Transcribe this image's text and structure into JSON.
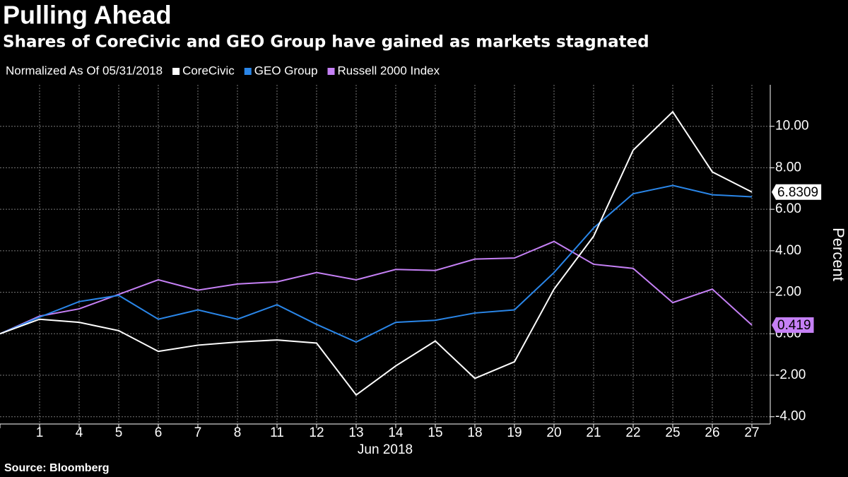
{
  "chart_data": {
    "type": "line",
    "title": "Pulling Ahead",
    "subtitle": "Shares of CoreCivic and GEO Group have gained as markets stagnated",
    "legend_title": "Normalized As Of 05/31/2018",
    "x_label": "Jun 2018",
    "y_label": "Percent",
    "source": "Source: Bloomberg",
    "categories": [
      null,
      "1",
      "4",
      "5",
      "6",
      "7",
      "8",
      "11",
      "12",
      "13",
      "14",
      "15",
      "18",
      "19",
      "20",
      "21",
      "22",
      "25",
      "26",
      "27"
    ],
    "series": [
      {
        "name": "CoreCivic",
        "color": "#ffffff",
        "values": [
          0,
          0.7,
          0.55,
          0.15,
          -0.85,
          -0.55,
          -0.4,
          -0.3,
          -0.45,
          -2.95,
          -1.55,
          -0.35,
          -2.15,
          -1.35,
          2.15,
          4.7,
          8.85,
          10.7,
          7.8,
          6.8309
        ]
      },
      {
        "name": "GEO Group",
        "color": "#2a86e8",
        "values": [
          0,
          0.8,
          1.55,
          1.85,
          0.7,
          1.15,
          0.7,
          1.4,
          0.45,
          -0.4,
          0.55,
          0.65,
          1.0,
          1.15,
          2.95,
          5.1,
          6.75,
          7.15,
          6.7,
          6.6
        ]
      },
      {
        "name": "Russell 2000 Index",
        "color": "#c580f5",
        "values": [
          0,
          0.85,
          1.2,
          1.9,
          2.6,
          2.1,
          2.4,
          2.5,
          2.95,
          2.6,
          3.1,
          3.05,
          3.6,
          3.65,
          4.45,
          3.35,
          3.15,
          1.5,
          2.15,
          0.419
        ]
      }
    ],
    "ylim": [
      -4.35,
      12
    ],
    "yticks": [
      {
        "value": -4,
        "label": "-4.00"
      },
      {
        "value": -2,
        "label": "-2.00"
      },
      {
        "value": 0,
        "label": "0.00"
      },
      {
        "value": 2,
        "label": "2.00"
      },
      {
        "value": 4,
        "label": "4.00"
      },
      {
        "value": 6,
        "label": "6.00"
      },
      {
        "value": 8,
        "label": "8.00"
      },
      {
        "value": 10,
        "label": "10.00"
      }
    ],
    "grid": true,
    "end_labels": [
      0,
      2
    ]
  }
}
